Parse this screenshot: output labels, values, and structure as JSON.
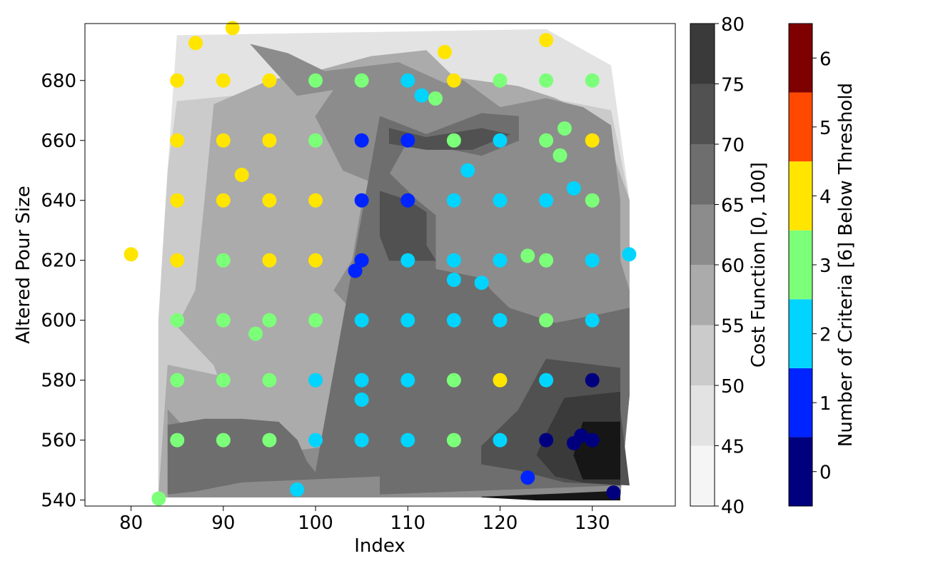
{
  "chart_data": {
    "type": "scatter",
    "xlabel": "Index",
    "ylabel": "Altered Pour Size",
    "xlim": [
      75,
      139
    ],
    "ylim": [
      538,
      699
    ],
    "xticks": [
      80,
      90,
      100,
      110,
      120,
      130
    ],
    "yticks": [
      540,
      560,
      580,
      600,
      620,
      640,
      660,
      680
    ],
    "grid": false,
    "contour": {
      "label": "Cost Function [0, 100]",
      "levels": [
        40,
        45,
        50,
        55,
        60,
        65,
        70,
        75,
        80
      ],
      "level_colors": [
        "#f5f5f5",
        "#e3e3e3",
        "#cbcbcb",
        "#ababab",
        "#8c8c8c",
        "#6e6e6e",
        "#515151",
        "#3a3a3a",
        "#161616"
      ],
      "regions": [
        {
          "band": 1,
          "points": [
            [
              85,
              695
            ],
            [
              125,
              697
            ],
            [
              132,
              685
            ],
            [
              134,
              640
            ],
            [
              134,
              575
            ],
            [
              133,
              541
            ],
            [
              83,
              541
            ],
            [
              83,
              600
            ],
            [
              84,
              650
            ]
          ]
        },
        {
          "band": 2,
          "points": [
            [
              85,
              673
            ],
            [
              95,
              676
            ],
            [
              105,
              677
            ],
            [
              118,
              672
            ],
            [
              122,
              676
            ],
            [
              132,
              670
            ],
            [
              134,
              640
            ],
            [
              134,
              575
            ],
            [
              133,
              541
            ],
            [
              83,
              541
            ],
            [
              83,
              600
            ],
            [
              84,
              650
            ]
          ]
        },
        {
          "band": 3,
          "points": [
            [
              89,
              672
            ],
            [
              95,
              680
            ],
            [
              100,
              683
            ],
            [
              106,
              688
            ],
            [
              112,
              690
            ],
            [
              115,
              681
            ],
            [
              122,
              678
            ],
            [
              126,
              674
            ],
            [
              131,
              666
            ],
            [
              134,
              640
            ],
            [
              134,
              575
            ],
            [
              133,
              541
            ],
            [
              83,
              541
            ],
            [
              84,
              585
            ],
            [
              95,
              578
            ],
            [
              98,
              562
            ],
            [
              92,
              560
            ],
            [
              89,
              585
            ],
            [
              85,
              598
            ],
            [
              87,
              610
            ],
            [
              88,
              640
            ]
          ]
        },
        {
          "band": 4,
          "points": [
            [
              93,
              692
            ],
            [
              97,
              689
            ],
            [
              101,
              683
            ],
            [
              109,
              686
            ],
            [
              114,
              679
            ],
            [
              116,
              680
            ],
            [
              120,
              671
            ],
            [
              125,
              674
            ],
            [
              129,
              671
            ],
            [
              132,
              665
            ],
            [
              133,
              640
            ],
            [
              133,
              620
            ],
            [
              134,
              610
            ],
            [
              134,
              575
            ],
            [
              133,
              541
            ],
            [
              84,
              541
            ],
            [
              84,
              570
            ],
            [
              90,
              550
            ],
            [
              97,
              556
            ],
            [
              104,
              559
            ],
            [
              103,
              577
            ],
            [
              104,
              593
            ],
            [
              105,
              600
            ],
            [
              102,
              610
            ],
            [
              104,
              620
            ],
            [
              105,
              638
            ],
            [
              107,
              645
            ],
            [
              103,
              650
            ],
            [
              100,
              668
            ],
            [
              102,
              677
            ],
            [
              98,
              675
            ]
          ]
        },
        {
          "band": 5,
          "points": [
            [
              107,
              668
            ],
            [
              112,
              662
            ],
            [
              118,
              669
            ],
            [
              122,
              668
            ],
            [
              122,
              660
            ],
            [
              118,
              655
            ],
            [
              110,
              660
            ],
            [
              108,
              649
            ],
            [
              111,
              640
            ],
            [
              113,
              635
            ],
            [
              113,
              617
            ],
            [
              118,
              614
            ],
            [
              119,
              610
            ],
            [
              121,
              604
            ],
            [
              126,
              599
            ],
            [
              131,
              602
            ],
            [
              134,
              604
            ],
            [
              134,
              575
            ],
            [
              133,
              545
            ],
            [
              107,
              542
            ],
            [
              107,
              548
            ],
            [
              92,
              546
            ],
            [
              87,
              543
            ],
            [
              84,
              542
            ],
            [
              84,
              550
            ],
            [
              84,
              565
            ],
            [
              88,
              567
            ],
            [
              92,
              567
            ],
            [
              96,
              566
            ],
            [
              98,
              560
            ],
            [
              99,
              553
            ],
            [
              100,
              549
            ]
          ]
        },
        {
          "band": 6,
          "points": [
            [
              108,
              664
            ],
            [
              112,
              661
            ],
            [
              118,
              664
            ],
            [
              121,
              662
            ],
            [
              117,
              657
            ],
            [
              112,
              657
            ],
            [
              108,
              659
            ]
          ]
        },
        {
          "band": 6,
          "points": [
            [
              107,
              643
            ],
            [
              110,
              640
            ],
            [
              112,
              636
            ],
            [
              112,
              625
            ],
            [
              113,
              620
            ],
            [
              108,
              620
            ],
            [
              107,
              628
            ]
          ]
        },
        {
          "band": 6,
          "points": [
            [
              125,
              587
            ],
            [
              133,
              584
            ],
            [
              133,
              570
            ],
            [
              134,
              545
            ],
            [
              127,
              546
            ],
            [
              122,
              550
            ],
            [
              118,
              552
            ],
            [
              118,
              558
            ],
            [
              122,
              570
            ]
          ]
        },
        {
          "band": 7,
          "points": [
            [
              127,
              574
            ],
            [
              133,
              576
            ],
            [
              133,
              560
            ],
            [
              133,
              545
            ],
            [
              129,
              546
            ],
            [
              126,
              548
            ],
            [
              124,
              555
            ],
            [
              125,
              562
            ]
          ]
        },
        {
          "band": 8,
          "points": [
            [
              129,
              566
            ],
            [
              133,
              566
            ],
            [
              133,
              547
            ],
            [
              129,
              547
            ],
            [
              128,
              555
            ]
          ]
        },
        {
          "band": 8,
          "points": [
            [
              118,
              541
            ],
            [
              126,
              542
            ],
            [
              133,
              543
            ],
            [
              133,
              540
            ],
            [
              124,
              540
            ]
          ]
        }
      ]
    },
    "criteria_colorbar": {
      "label": "Number of Criteria [6] Below Threshold",
      "ticks": [
        0,
        1,
        2,
        3,
        4,
        5,
        6
      ],
      "colors": [
        "#00007f",
        "#0024ff",
        "#00d4ff",
        "#7cff79",
        "#ffe500",
        "#ff4800",
        "#7f0000"
      ]
    },
    "series": [
      {
        "values": [
          [
            130,
            580
          ],
          [
            125,
            560
          ],
          [
            130,
            560
          ],
          [
            128,
            559
          ],
          [
            128.8,
            561.5
          ],
          [
            132.3,
            542.5
          ]
        ]
      },
      {
        "values": [
          [
            105,
            660
          ],
          [
            110,
            660
          ],
          [
            105,
            640
          ],
          [
            110,
            640
          ],
          [
            105,
            620
          ],
          [
            104.3,
            616.5
          ],
          [
            123,
            547.5
          ]
        ]
      },
      {
        "values": [
          [
            110,
            680
          ],
          [
            111.5,
            675
          ],
          [
            120,
            660
          ],
          [
            116.5,
            650
          ],
          [
            115,
            640
          ],
          [
            120,
            640
          ],
          [
            125,
            640
          ],
          [
            128,
            644
          ],
          [
            110,
            620
          ],
          [
            115,
            620
          ],
          [
            120,
            620
          ],
          [
            115,
            613.5
          ],
          [
            118,
            612.5
          ],
          [
            130,
            620
          ],
          [
            134,
            622
          ],
          [
            105,
            600
          ],
          [
            110,
            600
          ],
          [
            115,
            600
          ],
          [
            120,
            600
          ],
          [
            130,
            600
          ],
          [
            100,
            580
          ],
          [
            105,
            580
          ],
          [
            110,
            580
          ],
          [
            125,
            580
          ],
          [
            105,
            573.5
          ],
          [
            100,
            560
          ],
          [
            105,
            560
          ],
          [
            110,
            560
          ],
          [
            120,
            560
          ],
          [
            98,
            543.5
          ]
        ]
      },
      {
        "values": [
          [
            100,
            680
          ],
          [
            105,
            680
          ],
          [
            120,
            680
          ],
          [
            125,
            680
          ],
          [
            130,
            680
          ],
          [
            113,
            674
          ],
          [
            100,
            660
          ],
          [
            115,
            660
          ],
          [
            125,
            660
          ],
          [
            127,
            664
          ],
          [
            126.5,
            655
          ],
          [
            130,
            640
          ],
          [
            90,
            620
          ],
          [
            123,
            621.5
          ],
          [
            125,
            620
          ],
          [
            85,
            600
          ],
          [
            90,
            600
          ],
          [
            95,
            600
          ],
          [
            100,
            600
          ],
          [
            125,
            600
          ],
          [
            93.5,
            595.5
          ],
          [
            85,
            580
          ],
          [
            90,
            580
          ],
          [
            95,
            580
          ],
          [
            115,
            580
          ],
          [
            85,
            560
          ],
          [
            90,
            560
          ],
          [
            95,
            560
          ],
          [
            115,
            560
          ],
          [
            83,
            540.5
          ]
        ]
      },
      {
        "values": [
          [
            91,
            697.5
          ],
          [
            87,
            692.5
          ],
          [
            125,
            693.5
          ],
          [
            114,
            689.5
          ],
          [
            85,
            680
          ],
          [
            90,
            680
          ],
          [
            95,
            680
          ],
          [
            115,
            680
          ],
          [
            85,
            660
          ],
          [
            90,
            660
          ],
          [
            95,
            660
          ],
          [
            130,
            660
          ],
          [
            92,
            648.5
          ],
          [
            85,
            640
          ],
          [
            90,
            640
          ],
          [
            95,
            640
          ],
          [
            100,
            640
          ],
          [
            80,
            622
          ],
          [
            85,
            620
          ],
          [
            95,
            620
          ],
          [
            100,
            620
          ],
          [
            120,
            580
          ]
        ]
      }
    ]
  }
}
